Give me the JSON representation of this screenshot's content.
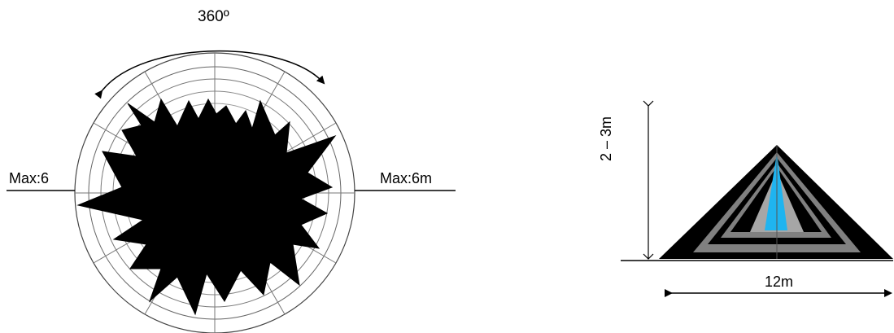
{
  "left_figure": {
    "angle_label": "360º",
    "left_label": "Max:6",
    "right_label": "Max:6m"
  },
  "right_figure": {
    "height_label": "2 – 3m",
    "width_label": "12m",
    "colors": {
      "outer": "#000000",
      "band_gray": "#808080",
      "inner_black": "#000000",
      "light_gray": "#a6a6a6",
      "core": "#1fb4f0"
    }
  }
}
